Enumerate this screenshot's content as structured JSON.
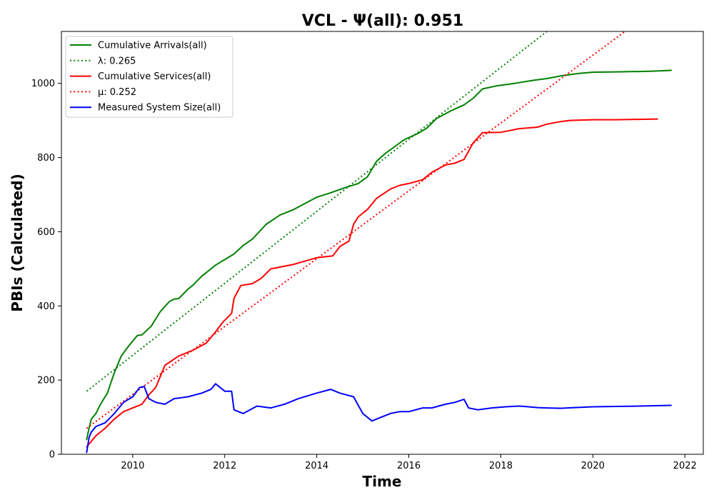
{
  "chart_data": {
    "type": "line",
    "title": "VCL -  Ψ(all): 0.951",
    "xlabel": "Time",
    "ylabel": "PBIs (Calculated)",
    "xlim": [
      2008.45,
      2022.4
    ],
    "ylim": [
      0,
      1140
    ],
    "xticks": [
      2010,
      2012,
      2014,
      2016,
      2018,
      2020,
      2022
    ],
    "yticks": [
      0,
      200,
      400,
      600,
      800,
      1000
    ],
    "grid": false,
    "legend_position": "top-left",
    "series": [
      {
        "name": "Cumulative Arrivals(all)",
        "color": "#008000",
        "style": "solid",
        "x": [
          2009.0,
          2009.05,
          2009.1,
          2009.2,
          2009.3,
          2009.45,
          2009.6,
          2009.75,
          2009.9,
          2010.1,
          2010.2,
          2010.4,
          2010.6,
          2010.8,
          2010.9,
          2011.0,
          2011.2,
          2011.3,
          2011.5,
          2011.8,
          2012.0,
          2012.2,
          2012.4,
          2012.6,
          2012.9,
          2013.2,
          2013.5,
          2013.8,
          2014.0,
          2014.3,
          2014.6,
          2014.9,
          2015.1,
          2015.3,
          2015.5,
          2015.7,
          2015.9,
          2016.2,
          2016.4,
          2016.6,
          2016.9,
          2017.2,
          2017.4,
          2017.6,
          2017.9,
          2018.3,
          2018.7,
          2019.0,
          2019.3,
          2019.7,
          2020.0,
          2020.5,
          2021.0,
          2021.3,
          2021.7
        ],
        "y": [
          40,
          70,
          95,
          110,
          135,
          165,
          220,
          265,
          290,
          320,
          322,
          345,
          385,
          412,
          418,
          420,
          445,
          455,
          480,
          510,
          525,
          540,
          563,
          580,
          620,
          645,
          660,
          680,
          693,
          705,
          718,
          730,
          748,
          790,
          812,
          830,
          848,
          865,
          880,
          905,
          925,
          942,
          960,
          985,
          993,
          1000,
          1008,
          1013,
          1020,
          1027,
          1030,
          1031,
          1032,
          1033,
          1035
        ]
      },
      {
        "name": "λ: 0.265",
        "color": "#008000",
        "style": "dotted",
        "x": [
          2009.0,
          2019.0
        ],
        "y": [
          170,
          1140
        ]
      },
      {
        "name": "Cumulative Services(all)",
        "color": "#ff0000",
        "style": "solid",
        "x": [
          2009.0,
          2009.1,
          2009.2,
          2009.4,
          2009.6,
          2009.8,
          2010.0,
          2010.2,
          2010.35,
          2010.5,
          2010.7,
          2011.0,
          2011.3,
          2011.6,
          2011.8,
          2011.95,
          2012.15,
          2012.2,
          2012.35,
          2012.6,
          2012.8,
          2013.0,
          2013.5,
          2014.0,
          2014.35,
          2014.5,
          2014.7,
          2014.8,
          2014.9,
          2015.1,
          2015.3,
          2015.6,
          2015.8,
          2016.0,
          2016.3,
          2016.5,
          2016.8,
          2017.0,
          2017.2,
          2017.4,
          2017.6,
          2018.0,
          2018.4,
          2018.8,
          2019.0,
          2019.3,
          2019.5,
          2020.0,
          2020.5,
          2021.0,
          2021.4
        ],
        "y": [
          20,
          35,
          50,
          70,
          95,
          115,
          125,
          135,
          160,
          180,
          240,
          265,
          280,
          300,
          330,
          355,
          380,
          420,
          455,
          460,
          475,
          500,
          512,
          530,
          535,
          560,
          575,
          620,
          640,
          660,
          690,
          715,
          725,
          730,
          740,
          760,
          780,
          785,
          795,
          840,
          867,
          868,
          878,
          882,
          890,
          897,
          900,
          902,
          902,
          903,
          904
        ]
      },
      {
        "name": "μ: 0.252",
        "color": "#ff0000",
        "style": "dotted",
        "x": [
          2009.0,
          2020.7
        ],
        "y": [
          70,
          1140
        ]
      },
      {
        "name": "Measured System Size(all)",
        "color": "#0000ff",
        "style": "solid",
        "x": [
          2009.0,
          2009.05,
          2009.1,
          2009.2,
          2009.4,
          2009.6,
          2009.8,
          2010.0,
          2010.15,
          2010.25,
          2010.35,
          2010.5,
          2010.7,
          2010.9,
          2011.2,
          2011.5,
          2011.7,
          2011.8,
          2012.0,
          2012.15,
          2012.2,
          2012.4,
          2012.7,
          2013.0,
          2013.3,
          2013.6,
          2014.0,
          2014.3,
          2014.5,
          2014.8,
          2015.0,
          2015.2,
          2015.4,
          2015.6,
          2015.8,
          2016.0,
          2016.3,
          2016.5,
          2016.8,
          2017.0,
          2017.2,
          2017.3,
          2017.5,
          2017.8,
          2018.1,
          2018.4,
          2018.6,
          2018.8,
          2019.0,
          2019.3,
          2019.6,
          2020.0,
          2020.5,
          2021.0,
          2021.7
        ],
        "y": [
          5,
          45,
          60,
          75,
          85,
          110,
          140,
          155,
          180,
          183,
          150,
          140,
          135,
          150,
          155,
          165,
          175,
          190,
          170,
          170,
          120,
          110,
          130,
          125,
          135,
          150,
          165,
          175,
          165,
          155,
          110,
          90,
          100,
          110,
          115,
          115,
          125,
          125,
          135,
          140,
          148,
          125,
          120,
          125,
          128,
          130,
          128,
          126,
          125,
          124,
          126,
          128,
          129,
          130,
          132
        ]
      }
    ]
  }
}
